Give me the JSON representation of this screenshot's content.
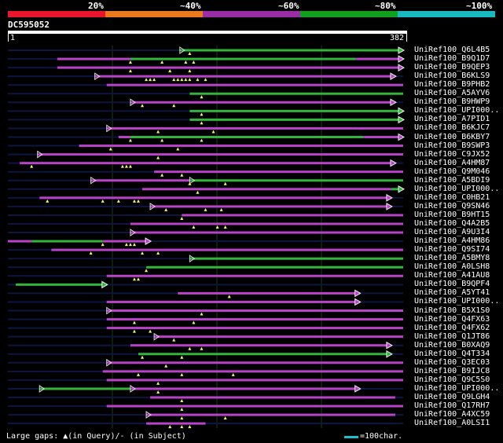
{
  "legend": {
    "colors": [
      "#e8152c",
      "#ea7a1d",
      "#9a2da6",
      "#12a01c",
      "#19b9c1"
    ],
    "labels": [
      "20%",
      "~40%",
      "~60%",
      "~80%",
      "~100%"
    ]
  },
  "query": {
    "id": "DC595052",
    "start": "1",
    "end": "382"
  },
  "colors": {
    "magenta": "#b842c8",
    "green": "#31b53b",
    "background": "#000000",
    "track": "#0d1640",
    "gap_marker": "#f4f46a",
    "grid": "#1d3a1d"
  },
  "hits": [
    {
      "label": "UniRef100_Q6L4B5",
      "segments": [
        {
          "from": 0.435,
          "to": 1.0,
          "color": "green"
        }
      ],
      "marks": [
        0.46
      ],
      "end_arrow": true
    },
    {
      "label": "UniRef100_B9Q1D7",
      "segments": [
        {
          "from": 0.125,
          "to": 0.31,
          "color": "magenta"
        },
        {
          "from": 0.31,
          "to": 0.88,
          "color": "green"
        },
        {
          "from": 0.88,
          "to": 1.0,
          "color": "magenta"
        }
      ],
      "marks": [
        0.31,
        0.39,
        0.45,
        0.47
      ],
      "end_arrow": true
    },
    {
      "label": "UniRef100_B9QEP3",
      "segments": [
        {
          "from": 0.125,
          "to": 0.31,
          "color": "magenta"
        },
        {
          "from": 0.31,
          "to": 1.0,
          "color": "magenta"
        }
      ],
      "marks": [
        0.31,
        0.41,
        0.46
      ],
      "end_arrow": true
    },
    {
      "label": "UniRef100_B6KLS9",
      "segments": [
        {
          "from": 0.22,
          "to": 0.98,
          "color": "magenta"
        }
      ],
      "marks": [
        0.35,
        0.36,
        0.37,
        0.42,
        0.43,
        0.44,
        0.45,
        0.46,
        0.48,
        0.5
      ],
      "end_arrow": true
    },
    {
      "label": "UniRef100_B9PHB2",
      "segments": [
        {
          "from": 0.25,
          "to": 1.0,
          "color": "magenta"
        }
      ],
      "marks": [],
      "end_arrow": false
    },
    {
      "label": "UniRef100_A5AYV6",
      "segments": [
        {
          "from": 0.46,
          "to": 1.0,
          "color": "green"
        }
      ],
      "marks": [
        0.49
      ],
      "end_arrow": false
    },
    {
      "label": "UniRef100_B9HWP9",
      "segments": [
        {
          "from": 0.31,
          "to": 0.98,
          "color": "magenta"
        }
      ],
      "marks": [
        0.34,
        0.42
      ],
      "end_arrow": true
    },
    {
      "label": "UniRef100_UPI000..",
      "segments": [
        {
          "from": 0.46,
          "to": 1.0,
          "color": "green"
        }
      ],
      "marks": [
        0.49
      ],
      "end_arrow": true
    },
    {
      "label": "UniRef100_A7PID1",
      "segments": [
        {
          "from": 0.46,
          "to": 1.0,
          "color": "green"
        }
      ],
      "marks": [
        0.49
      ],
      "end_arrow": true
    },
    {
      "label": "UniRef100_B6KJC7",
      "segments": [
        {
          "from": 0.25,
          "to": 1.0,
          "color": "magenta"
        }
      ],
      "marks": [
        0.38,
        0.52
      ],
      "end_arrow": false
    },
    {
      "label": "UniRef100_B6KBY7",
      "segments": [
        {
          "from": 0.28,
          "to": 0.31,
          "color": "magenta"
        },
        {
          "from": 0.31,
          "to": 0.9,
          "color": "green"
        },
        {
          "from": 0.9,
          "to": 1.0,
          "color": "magenta"
        }
      ],
      "marks": [
        0.31,
        0.39,
        0.49
      ],
      "end_arrow": true
    },
    {
      "label": "UniRef100_B9SWP3",
      "segments": [
        {
          "from": 0.18,
          "to": 1.0,
          "color": "magenta"
        }
      ],
      "marks": [
        0.26,
        0.43
      ],
      "end_arrow": false
    },
    {
      "label": "UniRef100_C9JX52",
      "segments": [
        {
          "from": 0.075,
          "to": 1.0,
          "color": "magenta"
        }
      ],
      "marks": [
        0.38
      ],
      "end_arrow": false
    },
    {
      "label": "UniRef100_A4HM87",
      "segments": [
        {
          "from": 0.03,
          "to": 0.98,
          "color": "magenta"
        }
      ],
      "marks": [
        0.06,
        0.29,
        0.3,
        0.31
      ],
      "end_arrow": true
    },
    {
      "label": "UniRef100_Q9M046",
      "segments": [
        {
          "from": 0.37,
          "to": 1.0,
          "color": "magenta"
        }
      ],
      "marks": [
        0.39,
        0.44
      ],
      "end_arrow": false
    },
    {
      "label": "UniRef100_A5BDI9",
      "segments": [
        {
          "from": 0.21,
          "to": 0.46,
          "color": "magenta"
        },
        {
          "from": 0.46,
          "to": 1.0,
          "color": "green"
        }
      ],
      "marks": [
        0.46,
        0.55
      ],
      "end_arrow": false
    },
    {
      "label": "UniRef100_UPI000..",
      "segments": [
        {
          "from": 0.34,
          "to": 0.97,
          "color": "magenta"
        },
        {
          "from": 0.97,
          "to": 1.0,
          "color": "green"
        }
      ],
      "marks": [
        0.48
      ],
      "end_arrow": true
    },
    {
      "label": "UniRef100_C0HB21",
      "segments": [
        {
          "from": 0.08,
          "to": 0.97,
          "color": "magenta"
        }
      ],
      "marks": [
        0.1,
        0.24,
        0.28,
        0.32,
        0.33
      ],
      "end_arrow": true
    },
    {
      "label": "UniRef100_Q9SN46",
      "segments": [
        {
          "from": 0.36,
          "to": 0.97,
          "color": "magenta"
        }
      ],
      "marks": [
        0.4,
        0.5,
        0.54
      ],
      "end_arrow": true
    },
    {
      "label": "UniRef100_B9HT15",
      "segments": [
        {
          "from": 0.44,
          "to": 1.0,
          "color": "magenta"
        }
      ],
      "marks": [
        0.44
      ],
      "end_arrow": false
    },
    {
      "label": "UniRef100_Q4A2B5",
      "segments": [
        {
          "from": 0.31,
          "to": 1.0,
          "color": "magenta"
        }
      ],
      "marks": [
        0.47,
        0.53,
        0.55
      ],
      "end_arrow": false
    },
    {
      "label": "UniRef100_A9U3I4",
      "segments": [
        {
          "from": 0.31,
          "to": 1.0,
          "color": "magenta"
        }
      ],
      "marks": [],
      "end_arrow": false
    },
    {
      "label": "UniRef100_A4HM86",
      "segments": [
        {
          "from": 0.0,
          "to": 0.06,
          "color": "magenta"
        },
        {
          "from": 0.06,
          "to": 0.24,
          "color": "green"
        },
        {
          "from": 0.24,
          "to": 0.36,
          "color": "magenta"
        }
      ],
      "marks": [
        0.24,
        0.3,
        0.31,
        0.32
      ],
      "end_arrow": true
    },
    {
      "label": "UniRef100_Q9SI74",
      "segments": [
        {
          "from": 0.11,
          "to": 1.0,
          "color": "magenta"
        }
      ],
      "marks": [
        0.21,
        0.34,
        0.38
      ],
      "end_arrow": false
    },
    {
      "label": "UniRef100_A5BMY8",
      "segments": [
        {
          "from": 0.46,
          "to": 1.0,
          "color": "green"
        }
      ],
      "marks": [],
      "end_arrow": false
    },
    {
      "label": "UniRef100_A0LSH8",
      "segments": [
        {
          "from": 0.35,
          "to": 1.0,
          "color": "green"
        }
      ],
      "marks": [
        0.35
      ],
      "end_arrow": false
    },
    {
      "label": "UniRef100_A41AU8",
      "segments": [
        {
          "from": 0.25,
          "to": 1.0,
          "color": "magenta"
        }
      ],
      "marks": [
        0.32,
        0.33
      ],
      "end_arrow": false
    },
    {
      "label": "UniRef100_B9QPF4",
      "segments": [
        {
          "from": 0.02,
          "to": 0.25,
          "color": "green"
        }
      ],
      "marks": [],
      "end_arrow": true
    },
    {
      "label": "UniRef100_A5YT41",
      "segments": [
        {
          "from": 0.43,
          "to": 0.89,
          "color": "magenta"
        }
      ],
      "marks": [
        0.56
      ],
      "end_arrow": true
    },
    {
      "label": "UniRef100_UPI000..",
      "segments": [
        {
          "from": 0.25,
          "to": 0.89,
          "color": "magenta"
        }
      ],
      "marks": [],
      "end_arrow": true
    },
    {
      "label": "UniRef100_B5X1S0",
      "segments": [
        {
          "from": 0.25,
          "to": 1.0,
          "color": "magenta"
        }
      ],
      "marks": [
        0.49
      ],
      "end_arrow": false
    },
    {
      "label": "UniRef100_Q4FX63",
      "segments": [
        {
          "from": 0.25,
          "to": 1.0,
          "color": "magenta"
        }
      ],
      "marks": [
        0.32,
        0.47
      ],
      "end_arrow": false
    },
    {
      "label": "UniRef100_Q4FX62",
      "segments": [
        {
          "from": 0.25,
          "to": 1.0,
          "color": "magenta"
        }
      ],
      "marks": [
        0.32,
        0.36
      ],
      "end_arrow": false
    },
    {
      "label": "UniRef100_Q1JT86",
      "segments": [
        {
          "from": 0.37,
          "to": 1.0,
          "color": "magenta"
        }
      ],
      "marks": [
        0.42
      ],
      "end_arrow": false
    },
    {
      "label": "UniRef100_B0XAQ9",
      "segments": [
        {
          "from": 0.31,
          "to": 0.97,
          "color": "magenta"
        }
      ],
      "marks": [
        0.46,
        0.49
      ],
      "end_arrow": true
    },
    {
      "label": "UniRef100_Q4T334",
      "segments": [
        {
          "from": 0.33,
          "to": 0.97,
          "color": "green"
        }
      ],
      "marks": [
        0.34,
        0.44
      ],
      "end_arrow": true
    },
    {
      "label": "UniRef100_Q3EC03",
      "segments": [
        {
          "from": 0.25,
          "to": 1.0,
          "color": "magenta"
        }
      ],
      "marks": [
        0.4
      ],
      "end_arrow": false
    },
    {
      "label": "UniRef100_B9IJC8",
      "segments": [
        {
          "from": 0.24,
          "to": 1.0,
          "color": "magenta"
        }
      ],
      "marks": [
        0.33,
        0.44,
        0.57
      ],
      "end_arrow": false
    },
    {
      "label": "UniRef100_Q9C5S0",
      "segments": [
        {
          "from": 0.25,
          "to": 1.0,
          "color": "magenta"
        }
      ],
      "marks": [
        0.38
      ],
      "end_arrow": false
    },
    {
      "label": "UniRef100_UPI000..",
      "segments": [
        {
          "from": 0.08,
          "to": 0.31,
          "color": "green"
        },
        {
          "from": 0.31,
          "to": 0.89,
          "color": "magenta"
        }
      ],
      "marks": [
        0.38
      ],
      "end_arrow": true
    },
    {
      "label": "UniRef100_Q9LGH4",
      "segments": [
        {
          "from": 0.36,
          "to": 0.98,
          "color": "magenta"
        }
      ],
      "marks": [
        0.44
      ],
      "end_arrow": false
    },
    {
      "label": "UniRef100_Q17RH7",
      "segments": [
        {
          "from": 0.25,
          "to": 1.0,
          "color": "magenta"
        }
      ],
      "marks": [
        0.44
      ],
      "end_arrow": false
    },
    {
      "label": "UniRef100_A4XC59",
      "segments": [
        {
          "from": 0.35,
          "to": 0.98,
          "color": "magenta"
        }
      ],
      "marks": [
        0.44,
        0.55
      ],
      "end_arrow": false
    },
    {
      "label": "UniRef100_A0LSI1",
      "segments": [
        {
          "from": 0.35,
          "to": 0.5,
          "color": "magenta"
        }
      ],
      "marks": [
        0.41,
        0.44,
        0.46
      ],
      "end_arrow": false
    }
  ],
  "footer": {
    "text": "Large gaps: ▲(in Query)/- (in Subject)",
    "scale_label": "=100char."
  }
}
